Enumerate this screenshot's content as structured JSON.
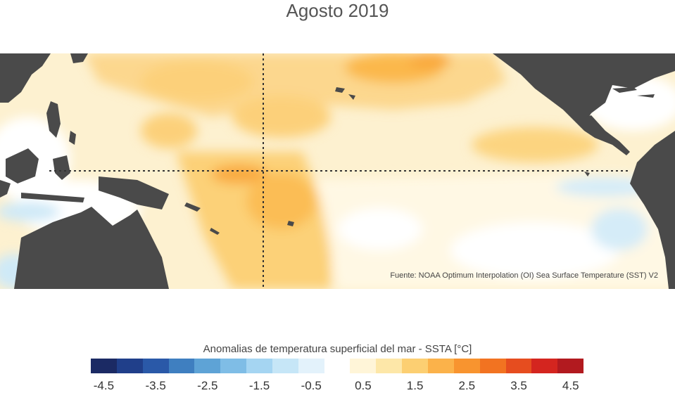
{
  "title": "Agosto 2019",
  "source": "Fuente: NOAA Optimum Interpolation (OI) Sea Surface Temperature (SST) V2",
  "colorbar": {
    "label": "Anomalias de temperatura superficial del mar - SSTA  [°C]",
    "colors": [
      "#1b2a64",
      "#203f8a",
      "#2a59a8",
      "#3f7fc0",
      "#5ea3d6",
      "#7fbde6",
      "#a5d5f2",
      "#c6e6f7",
      "#e3f2fb",
      "#ffffff",
      "#fff5d8",
      "#fde7a8",
      "#fccf72",
      "#fbb24a",
      "#f8942f",
      "#f27321",
      "#e64d1f",
      "#d4251f",
      "#b21a1f"
    ],
    "ticks": [
      "-4.5",
      "-3.5",
      "-2.5",
      "-1.5",
      "-0.5",
      "0.5",
      "1.5",
      "2.5",
      "3.5",
      "4.5"
    ]
  },
  "colors": {
    "land": "#4a4a4a",
    "ocean_base": "#fdf1d0",
    "warm": "#fbc466",
    "cool": "#cde8f6"
  }
}
